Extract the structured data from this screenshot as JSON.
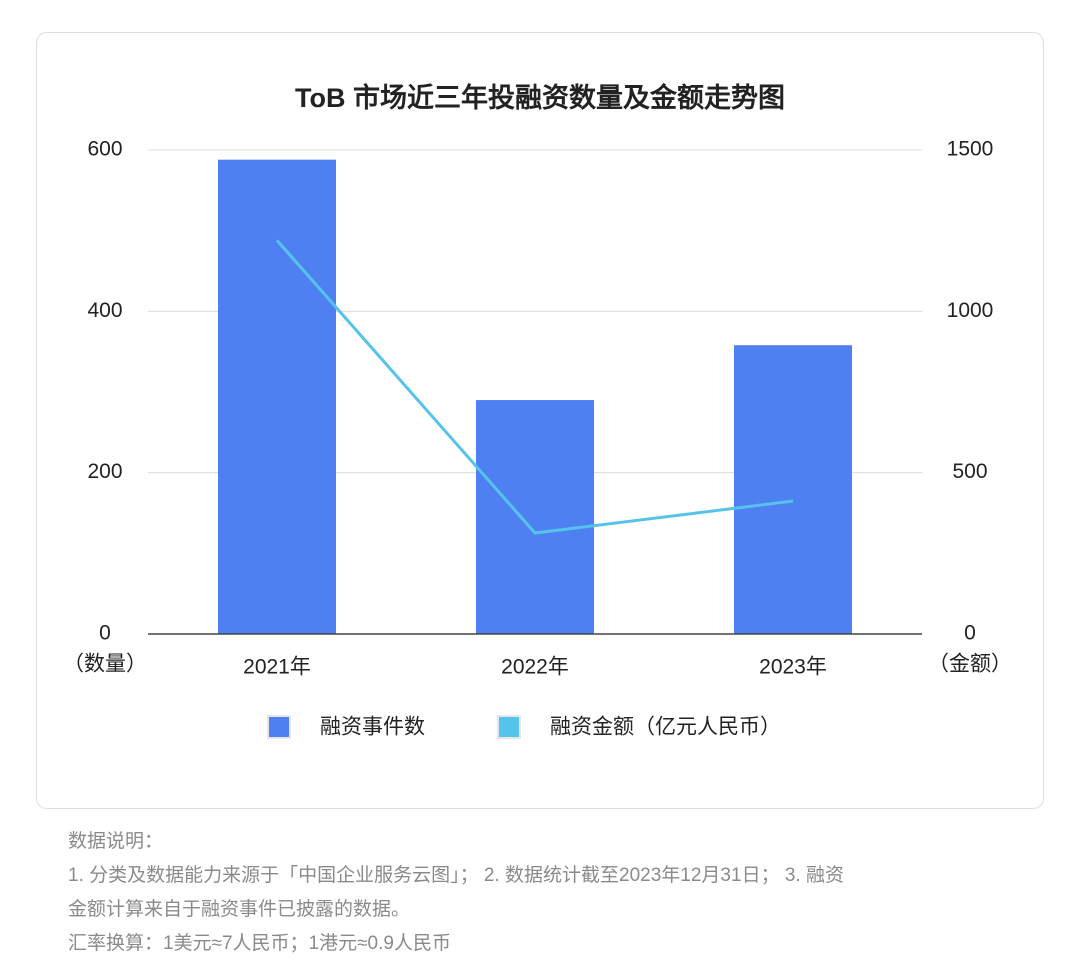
{
  "chart_data": {
    "type": "bar",
    "title": "ToB 市场近三年投融资数量及金额走势图",
    "categories": [
      "2021年",
      "2022年",
      "2023年"
    ],
    "series": [
      {
        "name": "融资事件数",
        "type": "bar",
        "color": "#4f80f1",
        "values": [
          588,
          290,
          358
        ]
      },
      {
        "name": "融资金额（亿元人民币）",
        "type": "line",
        "color": "#56c3ea",
        "axis": "y2",
        "values": [
          1220,
          313,
          412
        ]
      }
    ],
    "ylabel": "（数量）",
    "y2label": "（金额）",
    "ylim": [
      0,
      600
    ],
    "yticks": [
      0,
      200,
      400,
      600
    ],
    "y2lim": [
      0,
      1500
    ],
    "y2ticks": [
      0,
      500,
      1000,
      1500
    ],
    "grid": true,
    "legend": "bottom"
  },
  "notes": {
    "heading": "数据说明：",
    "lines": [
      "1. 分类及数据能力来源于「中国企业服务云图」； 2. 数据统计截至2023年12月31日； 3. 融资",
      "金额计算来自于融资事件已披露的数据。",
      "汇率换算：1美元≈7人民币；1港元≈0.9人民币"
    ]
  }
}
